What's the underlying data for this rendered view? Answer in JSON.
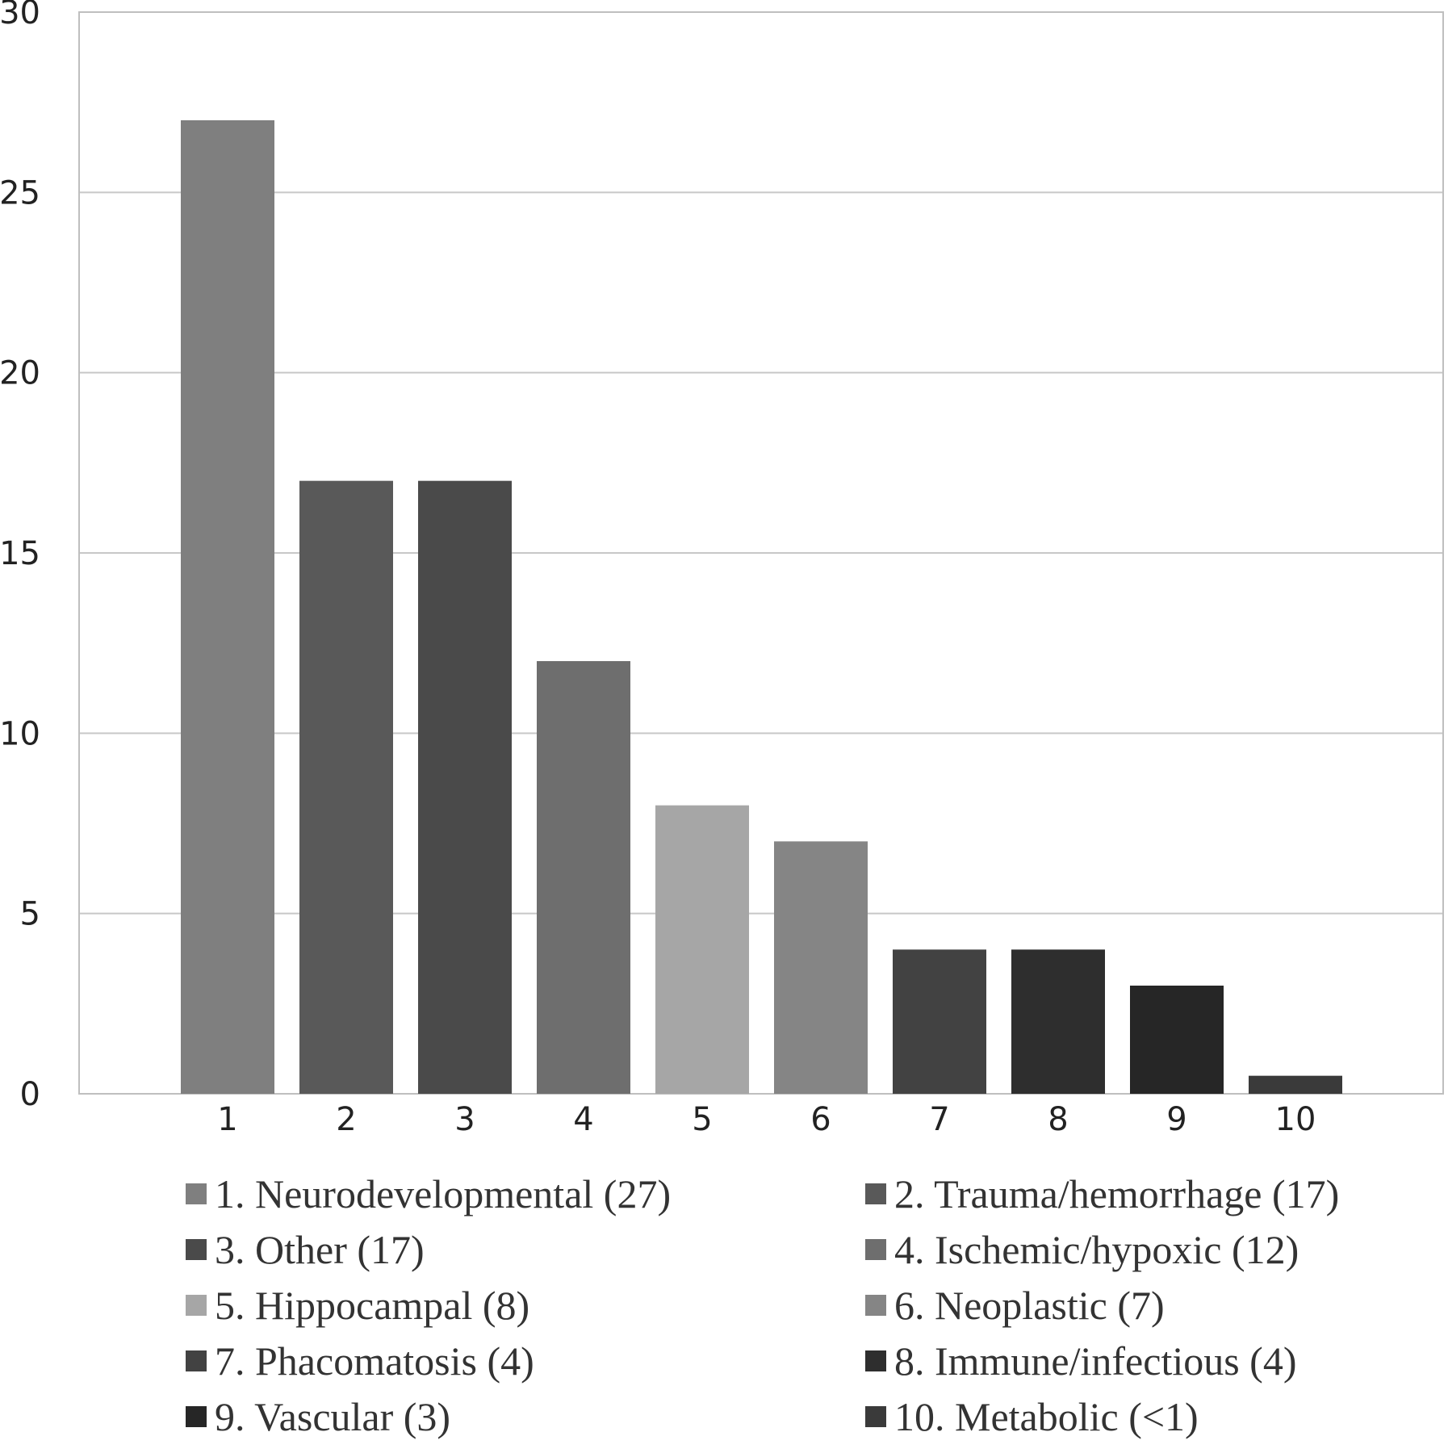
{
  "chart_data": {
    "type": "bar",
    "categories": [
      "1",
      "2",
      "3",
      "4",
      "5",
      "6",
      "7",
      "8",
      "9",
      "10"
    ],
    "values": [
      27,
      17,
      17,
      12,
      8,
      7,
      4,
      4,
      3,
      0.5
    ],
    "colors": [
      "#7f7f7f",
      "#595959",
      "#4a4a4a",
      "#6e6e6e",
      "#a6a6a6",
      "#858585",
      "#424242",
      "#2e2e2e",
      "#262626",
      "#3a3a3a"
    ],
    "ylim": [
      0,
      30
    ],
    "yticks": [
      0,
      5,
      10,
      15,
      20,
      25,
      30
    ],
    "grid": true,
    "legend_position": "bottom",
    "legend": [
      "1. Neurodevelopmental (27)",
      "2. Trauma/hemorrhage (17)",
      "3. Other (17)",
      "4. Ischemic/hypoxic (12)",
      "5. Hippocampal (8)",
      "6. Neoplastic (7)",
      "7. Phacomatosis (4)",
      "8. Immune/infectious (4)",
      "9. Vascular (3)",
      "10. Metabolic (<1)"
    ]
  }
}
